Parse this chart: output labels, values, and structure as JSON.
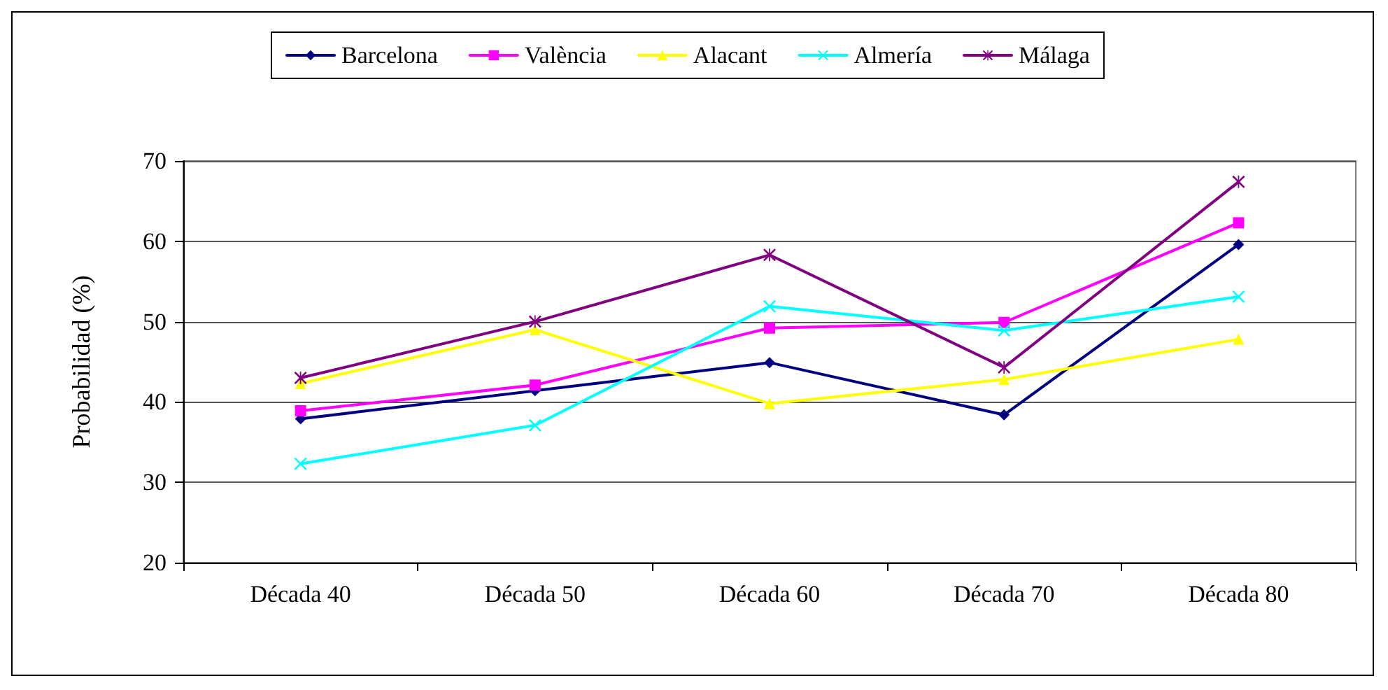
{
  "chart_data": {
    "type": "line",
    "ylabel": "Probabilidad (%)",
    "categories": [
      "Década 40",
      "Década 50",
      "Década 60",
      "Década 70",
      "Década 80"
    ],
    "series": [
      {
        "name": "Barcelona",
        "color": "#000080",
        "marker": "diamond",
        "values": [
          37.9,
          41.4,
          44.9,
          38.4,
          59.6
        ]
      },
      {
        "name": "València",
        "color": "#ff00ff",
        "marker": "square",
        "values": [
          38.9,
          42.1,
          49.2,
          49.9,
          62.3
        ]
      },
      {
        "name": "Alacant",
        "color": "#ffff00",
        "marker": "triangle",
        "values": [
          42.3,
          49.0,
          39.8,
          42.8,
          47.8
        ]
      },
      {
        "name": "Almería",
        "color": "#00ffff",
        "marker": "cross",
        "values": [
          32.3,
          37.1,
          51.9,
          48.9,
          53.1
        ]
      },
      {
        "name": "Málaga",
        "color": "#800080",
        "marker": "star",
        "values": [
          43.0,
          50.0,
          58.3,
          44.3,
          67.4
        ]
      }
    ],
    "ylim": [
      20,
      70
    ],
    "yticks": [
      20,
      30,
      40,
      50,
      60,
      70
    ],
    "grid": "y",
    "legend": "top",
    "line_style": "solid"
  }
}
